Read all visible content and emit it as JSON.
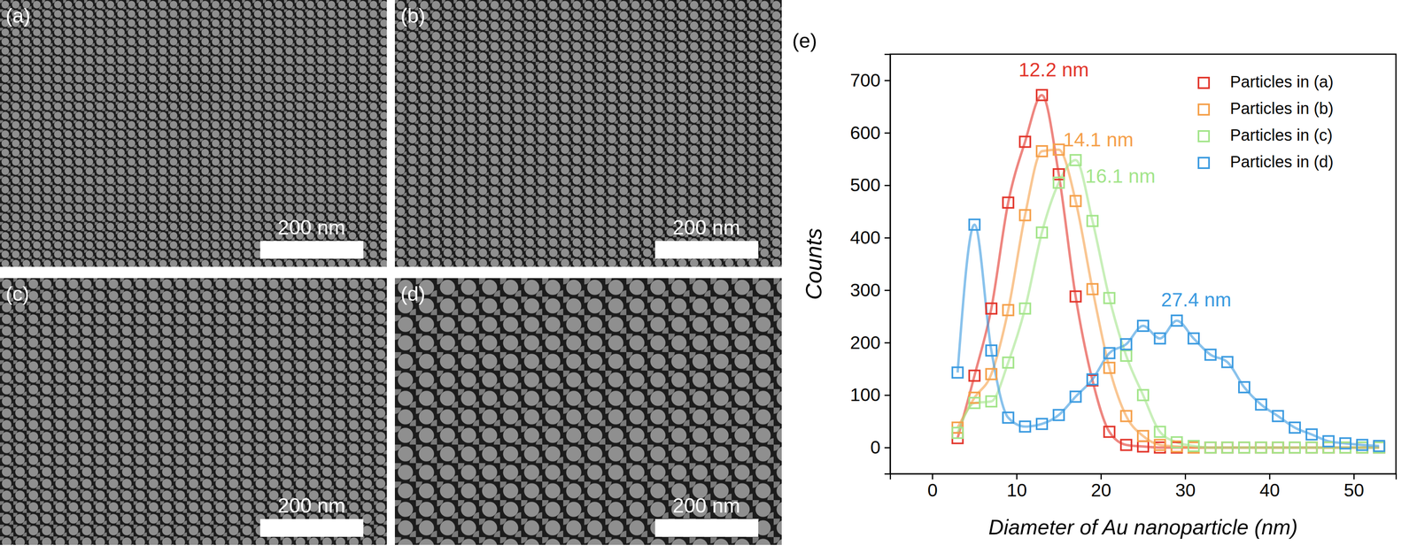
{
  "panels": [
    {
      "label": "(a)",
      "scale_bar": "200 nm"
    },
    {
      "label": "(b)",
      "scale_bar": "200 nm"
    },
    {
      "label": "(c)",
      "scale_bar": "200 nm"
    },
    {
      "label": "(d)",
      "scale_bar": "200 nm"
    }
  ],
  "chart_data": {
    "type": "line",
    "title": "(e)",
    "xlabel": "Diameter of Au nanoparticle (nm)",
    "ylabel": "Counts",
    "marker": "square",
    "legend": "upper right",
    "x": [
      3,
      5,
      7,
      9,
      11,
      13,
      15,
      17,
      19,
      21,
      23,
      25,
      27,
      29,
      31,
      33,
      35,
      37,
      39,
      41,
      43,
      45,
      47,
      49,
      51,
      53
    ],
    "xlim": [
      -5,
      55
    ],
    "xticks": [
      0,
      10,
      20,
      30,
      40,
      50
    ],
    "ylim": [
      -50,
      750
    ],
    "yticks": [
      0,
      100,
      200,
      300,
      400,
      500,
      600,
      700
    ],
    "series": [
      {
        "name": "Particles in (a)",
        "color": "#e2362c",
        "values": [
          18,
          137,
          265,
          467,
          583,
          672,
          521,
          288,
          128,
          30,
          5,
          2,
          0,
          0,
          0,
          0,
          0,
          0,
          0,
          0,
          0,
          0,
          0,
          0,
          0,
          0
        ]
      },
      {
        "name": "Particles in (b)",
        "color": "#f5a04a",
        "values": [
          38,
          95,
          140,
          262,
          443,
          565,
          568,
          470,
          302,
          152,
          60,
          22,
          5,
          2,
          0,
          0,
          0,
          0,
          0,
          0,
          0,
          0,
          0,
          0,
          0,
          0
        ]
      },
      {
        "name": "Particles in (c)",
        "color": "#a3e58a",
        "values": [
          28,
          85,
          88,
          162,
          265,
          410,
          505,
          548,
          432,
          285,
          175,
          100,
          30,
          10,
          3,
          0,
          0,
          0,
          0,
          0,
          0,
          0,
          0,
          0,
          0,
          0
        ]
      },
      {
        "name": "Particles in (d)",
        "color": "#3a9ae0",
        "values": [
          143,
          425,
          185,
          57,
          40,
          45,
          62,
          97,
          130,
          180,
          197,
          232,
          208,
          242,
          208,
          177,
          163,
          115,
          82,
          60,
          38,
          25,
          12,
          8,
          5,
          3
        ]
      }
    ],
    "annotations": [
      {
        "text": "12.2 nm",
        "x": 14.4,
        "y": 717,
        "color": "#e2362c"
      },
      {
        "text": "14.1 nm",
        "x": 19.7,
        "y": 584,
        "color": "#f5a04a"
      },
      {
        "text": "16.1 nm",
        "x": 22.3,
        "y": 515,
        "color": "#a3e58a"
      },
      {
        "text": "27.4 nm",
        "x": 31.3,
        "y": 279,
        "color": "#3a9ae0"
      }
    ]
  }
}
